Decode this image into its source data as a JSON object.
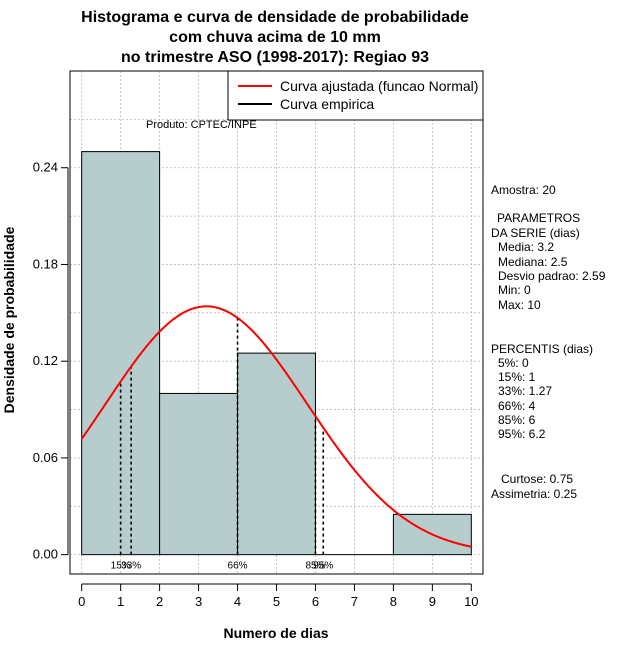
{
  "chart_data": {
    "type": "bar",
    "title_lines": [
      "Histograma e curva de densidade de probabilidade",
      "com chuva acima de 10 mm",
      "no trimestre ASO (1998-2017): Regiao 93"
    ],
    "xlabel": "Numero de dias",
    "ylabel": "Densidade de probabilidade",
    "xlim": [
      -0.3,
      10.3
    ],
    "ylim": [
      -0.012,
      0.3
    ],
    "x_ticks": [
      "0",
      "1",
      "2",
      "3",
      "4",
      "5",
      "6",
      "7",
      "8",
      "9",
      "10"
    ],
    "y_ticks": [
      "0.00",
      "0.06",
      "0.12",
      "0.18",
      "0.24"
    ],
    "bars": [
      {
        "from": 0,
        "to": 2,
        "value": 0.25
      },
      {
        "from": 2,
        "to": 4,
        "value": 0.1
      },
      {
        "from": 4,
        "to": 6,
        "value": 0.125
      },
      {
        "from": 6,
        "to": 8,
        "value": 0.0
      },
      {
        "from": 8,
        "to": 10,
        "value": 0.025
      }
    ],
    "normal_fit": {
      "mean": 3.2,
      "sd": 2.59,
      "color": "#ff0000"
    },
    "legend": [
      "Curva ajustada (funcao Normal)",
      "Curva empirica"
    ],
    "legend_colors": [
      "#ff0000",
      "#000000"
    ],
    "bar_color": "#b7cccc",
    "percentile_lines": [
      {
        "label": "15%",
        "x": 1.0
      },
      {
        "label": "33%",
        "x": 1.27
      },
      {
        "label": "66%",
        "x": 4.0
      },
      {
        "label": "85%",
        "x": 6.0
      },
      {
        "label": "95%",
        "x": 6.2
      }
    ],
    "product_label": "Produto: CPTEC/INPE",
    "stats_lines": [
      "Amostra: 20",
      "PARAMETROS",
      "DA SERIE (dias)",
      "Media: 3.2",
      "Mediana: 2.5",
      "Desvio padrao: 2.59",
      "Min: 0",
      "Max: 10",
      "PERCENTIS (dias)",
      "5%: 0",
      "15%: 1",
      "33%: 1.27",
      "66%: 4",
      "85%: 6",
      "95%: 6.2",
      "Curtose: 0.75",
      "Assimetria: 0.25"
    ]
  }
}
